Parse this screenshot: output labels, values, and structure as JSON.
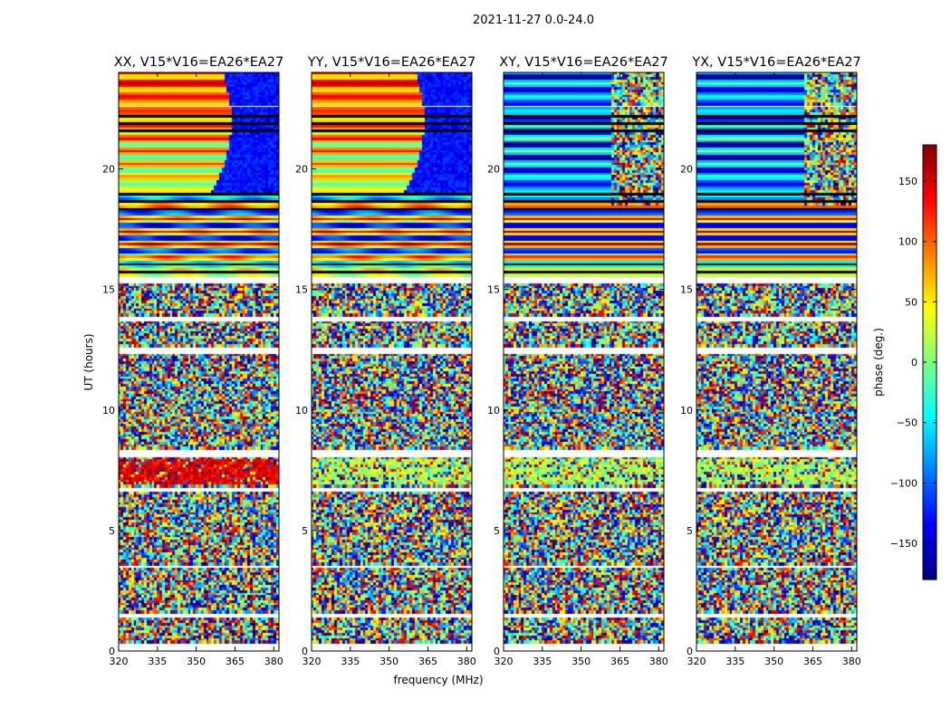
{
  "chart_data": {
    "type": "heatmap",
    "title": "2021-11-27 0.0-24.0",
    "xlabel": "frequency (MHz)",
    "ylabel": "UT (hours)",
    "xlim": [
      320,
      382
    ],
    "ylim": [
      0,
      24
    ],
    "xticks": [
      "320",
      "335",
      "350",
      "365",
      "380"
    ],
    "xtick_values": [
      320,
      335,
      350,
      365,
      380
    ],
    "yticks": [
      "0",
      "5",
      "10",
      "15",
      "20"
    ],
    "ytick_values": [
      0,
      5,
      10,
      15,
      20
    ],
    "panels": [
      {
        "title": "XX, V15*V16=EA26*EA27",
        "pattern": "parallel",
        "band_7h": "warm"
      },
      {
        "title": "YY, V15*V16=EA26*EA27",
        "pattern": "parallel",
        "band_7h": "cool"
      },
      {
        "title": "XY, V15*V16=EA26*EA27",
        "pattern": "cross",
        "band_7h": "cool"
      },
      {
        "title": "YX, V15*V16=EA26*EA27",
        "pattern": "cross",
        "band_7h": "cool"
      }
    ],
    "colorbar": {
      "label": "phase (deg.)",
      "range": [
        -180,
        180
      ],
      "ticks": [
        "150",
        "100",
        "50",
        "0",
        "−50",
        "−100",
        "−150"
      ],
      "tick_values": [
        150,
        100,
        50,
        0,
        -50,
        -100,
        -150
      ]
    },
    "gaps_hours": [
      [
        0.0,
        0.3
      ],
      [
        1.35,
        1.55
      ],
      [
        3.4,
        3.55
      ],
      [
        6.55,
        6.8
      ],
      [
        8.05,
        8.3
      ],
      [
        12.3,
        12.6
      ],
      [
        13.7,
        13.85
      ],
      [
        15.2,
        15.55
      ],
      [
        22.55,
        22.65
      ]
    ],
    "coherent_hours": [
      [
        15.55,
        24.0
      ],
      [
        6.9,
        7.95
      ]
    ],
    "colormap": [
      "#00007f",
      "#0000ff",
      "#007fff",
      "#00ffff",
      "#7fff7f",
      "#ffff00",
      "#ff7f00",
      "#ff0000",
      "#7f0000"
    ]
  }
}
